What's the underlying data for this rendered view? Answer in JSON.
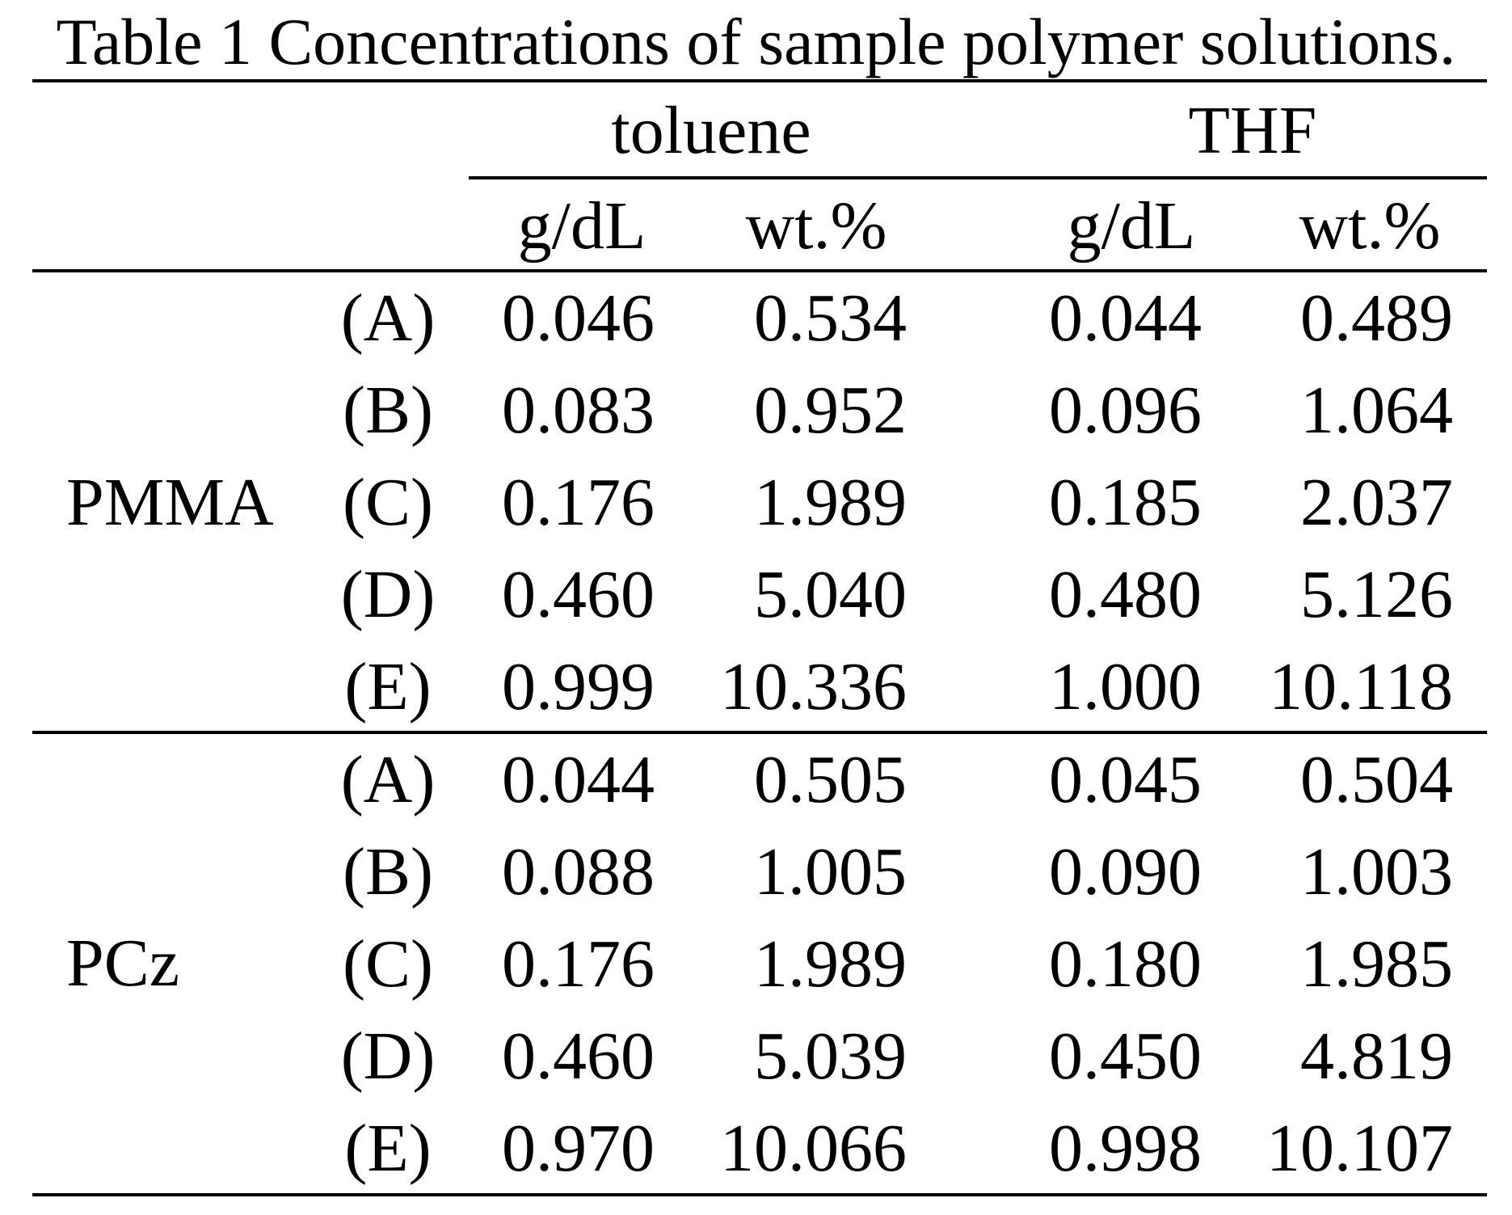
{
  "caption": "Table 1 Concentrations of sample polymer solutions.",
  "header": {
    "solvents": [
      "toluene",
      "THF"
    ],
    "units": [
      "g/dL",
      "wt.%",
      "g/dL",
      "wt.%"
    ]
  },
  "groups": [
    {
      "polymer": "PMMA",
      "rows": [
        {
          "label": "(A)",
          "values": [
            "0.046",
            "0.534",
            "0.044",
            "0.489"
          ]
        },
        {
          "label": "(B)",
          "values": [
            "0.083",
            "0.952",
            "0.096",
            "1.064"
          ]
        },
        {
          "label": "(C)",
          "values": [
            "0.176",
            "1.989",
            "0.185",
            "2.037"
          ]
        },
        {
          "label": "(D)",
          "values": [
            "0.460",
            "5.040",
            "0.480",
            "5.126"
          ]
        },
        {
          "label": "(E)",
          "values": [
            "0.999",
            "10.336",
            "1.000",
            "10.118"
          ]
        }
      ]
    },
    {
      "polymer": "PCz",
      "rows": [
        {
          "label": "(A)",
          "values": [
            "0.044",
            "0.505",
            "0.045",
            "0.504"
          ]
        },
        {
          "label": "(B)",
          "values": [
            "0.088",
            "1.005",
            "0.090",
            "1.003"
          ]
        },
        {
          "label": "(C)",
          "values": [
            "0.176",
            "1.989",
            "0.180",
            "1.985"
          ]
        },
        {
          "label": "(D)",
          "values": [
            "0.460",
            "5.039",
            "0.450",
            "4.819"
          ]
        },
        {
          "label": "(E)",
          "values": [
            "0.970",
            "10.066",
            "0.998",
            "10.107"
          ]
        }
      ]
    }
  ]
}
